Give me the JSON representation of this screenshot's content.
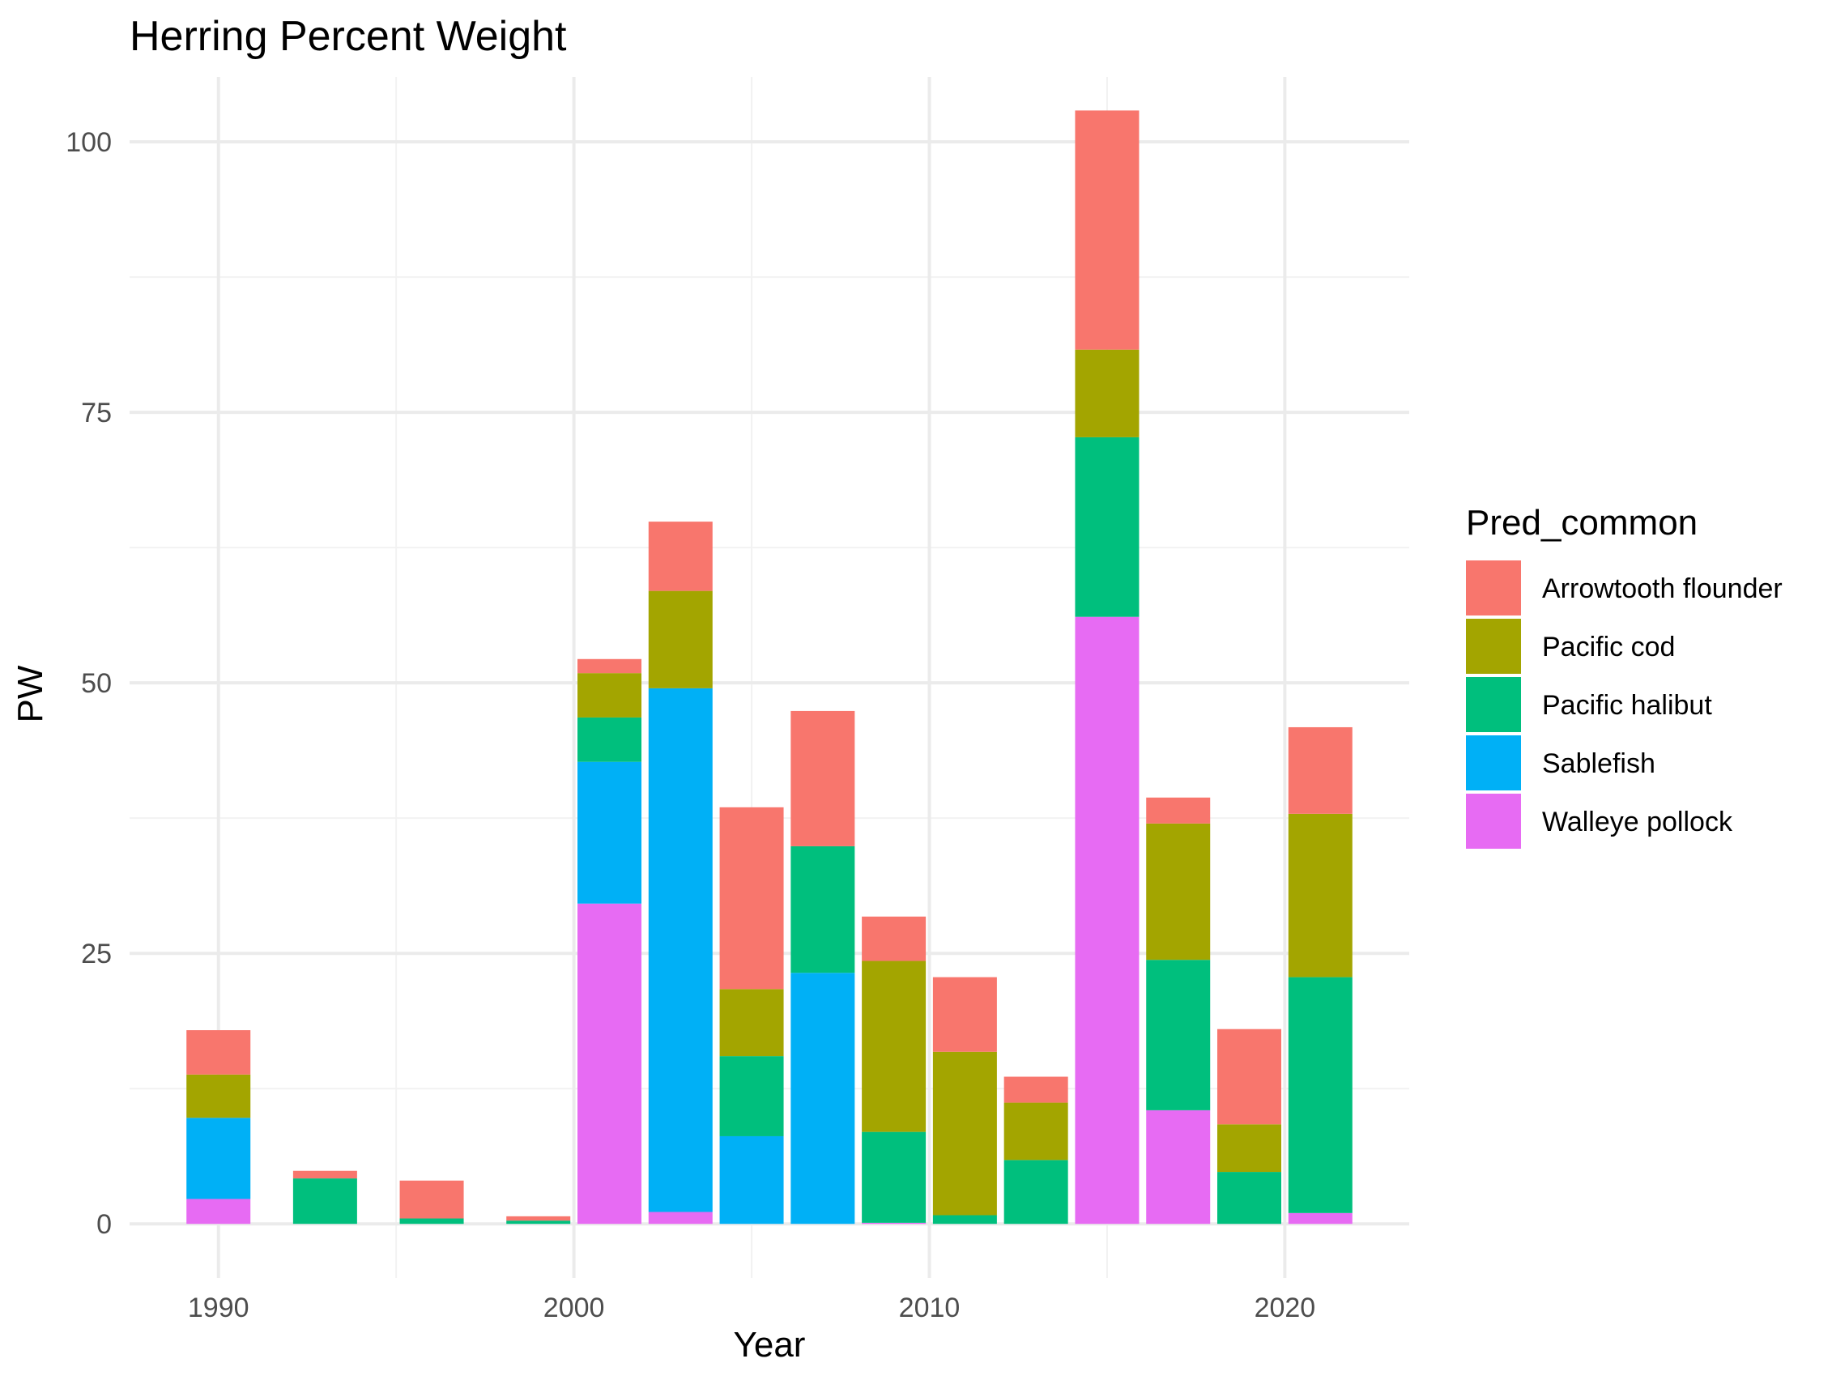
{
  "chart_data": {
    "type": "bar",
    "stacked": true,
    "title": "Herring Percent Weight",
    "xlabel": "Year",
    "ylabel": "PW",
    "xlim": [
      1987.5,
      2023.5
    ],
    "ylim": [
      -5,
      106
    ],
    "x_ticks": [
      1990,
      2000,
      2010,
      2020
    ],
    "y_ticks": [
      0,
      25,
      50,
      75,
      100
    ],
    "grid": true,
    "legend": {
      "title": "Pred_common",
      "position": "right",
      "entries": [
        "Arrowtooth flounder",
        "Pacific cod",
        "Pacific halibut",
        "Sablefish",
        "Walleye pollock"
      ]
    },
    "colors": {
      "Arrowtooth flounder": "#F8766D",
      "Pacific cod": "#A3A500",
      "Pacific halibut": "#00BF7D",
      "Sablefish": "#00B0F6",
      "Walleye pollock": "#E76BF3"
    },
    "x": [
      1990,
      1993,
      1996,
      1999,
      2001,
      2003,
      2005,
      2007,
      2009,
      2011,
      2013,
      2015,
      2017,
      2019,
      2021
    ],
    "series": [
      {
        "name": "Walleye pollock",
        "values": [
          2.3,
          0,
          0,
          0,
          29.6,
          1.1,
          0,
          0,
          0.1,
          0,
          0,
          56.1,
          10.5,
          0,
          1.0
        ]
      },
      {
        "name": "Sablefish",
        "values": [
          7.5,
          0,
          0,
          0,
          13.1,
          48.4,
          8.1,
          23.2,
          0,
          0,
          0,
          0,
          0,
          0,
          0
        ]
      },
      {
        "name": "Pacific halibut",
        "values": [
          0,
          4.2,
          0.5,
          0.3,
          4.1,
          0,
          7.4,
          11.7,
          8.4,
          0.8,
          5.9,
          16.6,
          13.9,
          4.8,
          21.8
        ]
      },
      {
        "name": "Pacific cod",
        "values": [
          4.0,
          0,
          0,
          0,
          4.1,
          9.0,
          6.2,
          0,
          15.8,
          15.1,
          5.3,
          8.1,
          12.6,
          4.4,
          15.1
        ]
      },
      {
        "name": "Arrowtooth flounder",
        "values": [
          4.1,
          0.7,
          3.5,
          0.4,
          1.3,
          6.4,
          16.8,
          12.5,
          4.1,
          6.9,
          2.4,
          22.1,
          2.4,
          8.8,
          8.0
        ]
      }
    ]
  }
}
